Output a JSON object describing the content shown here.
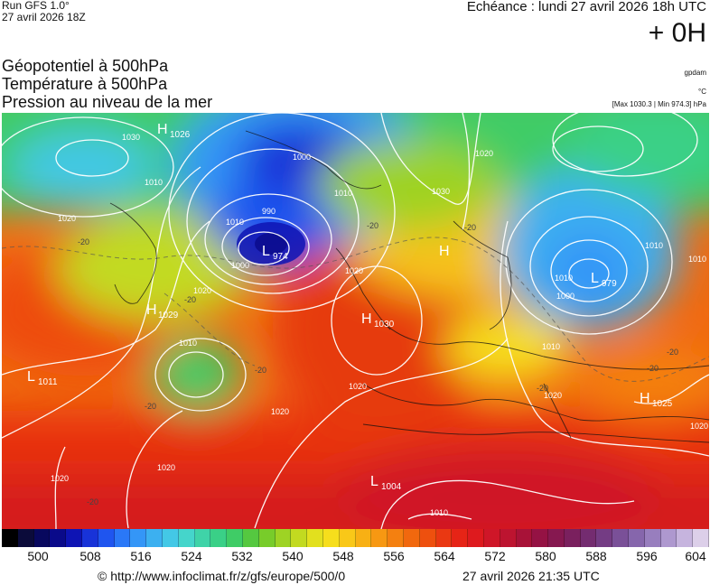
{
  "header": {
    "run": "Run GFS 1.0°",
    "run_time": "27 avril 2026 18Z",
    "echeance": "Echéance : lundi 27 avril 2026 18h UTC",
    "lead": "+ 0H"
  },
  "titles": [
    "Géopotentiel à 500hPa",
    "Température à 500hPa",
    "Pression au niveau de la mer"
  ],
  "units": {
    "geopotential": "gpdam",
    "temperature": "°C"
  },
  "pressure_range": "[Max 1030.3 | Min 974.3] hPa",
  "legend": {
    "ticks": [
      "500",
      "508",
      "516",
      "524",
      "532",
      "540",
      "548",
      "556",
      "564",
      "572",
      "580",
      "588",
      "596",
      "604"
    ],
    "colors": [
      "#000000",
      "#0b0b3a",
      "#08085e",
      "#0a0a8a",
      "#0e14b4",
      "#1833d8",
      "#1f55ef",
      "#2a78f7",
      "#3496f7",
      "#3cb0f0",
      "#43c8e6",
      "#45d5cb",
      "#3fd3a8",
      "#3ad087",
      "#3fcc66",
      "#55c840",
      "#78cc2a",
      "#9ed324",
      "#c2da20",
      "#e2e01e",
      "#f6de1c",
      "#f9c818",
      "#f8b014",
      "#f79812",
      "#f48010",
      "#f1680e",
      "#ee500e",
      "#ea3812",
      "#e62416",
      "#de1a1e",
      "#cf1628",
      "#bd1430",
      "#a81238",
      "#951244",
      "#861850",
      "#7a205e",
      "#742c70",
      "#743c84",
      "#7a5098",
      "#8666ac",
      "#987ebe",
      "#ae98cf",
      "#c6b4de",
      "#dccfe9"
    ]
  },
  "pressure_systems": [
    {
      "type": "H",
      "value": "1026"
    },
    {
      "type": "L",
      "value": "974"
    },
    {
      "type": "L",
      "value": "979"
    },
    {
      "type": "H",
      "value": "1029"
    },
    {
      "type": "H",
      "value": "1030"
    },
    {
      "type": "H",
      "value": ""
    },
    {
      "type": "L",
      "value": "1011"
    },
    {
      "type": "L",
      "value": "1004"
    },
    {
      "type": "H",
      "value": "1025"
    }
  ],
  "isobar_labels": [
    "1030",
    "1020",
    "1010",
    "1000",
    "990",
    "1010",
    "1000",
    "1010",
    "1020",
    "1030",
    "1020",
    "1010",
    "1000",
    "1010",
    "1020",
    "1010",
    "1020",
    "1020",
    "1020",
    "1020",
    "1020",
    "1010",
    "1010",
    "1020",
    "1010"
  ],
  "isotherm_labels": [
    "-20",
    "-20",
    "-20",
    "-20",
    "-20",
    "-20",
    "-20",
    "-20",
    "-20",
    "-20"
  ],
  "footer": {
    "copyright": "© http://www.infoclimat.fr/z/gfs/europe/500/0",
    "timestamp": "27 avril 2026 21:35 UTC"
  }
}
